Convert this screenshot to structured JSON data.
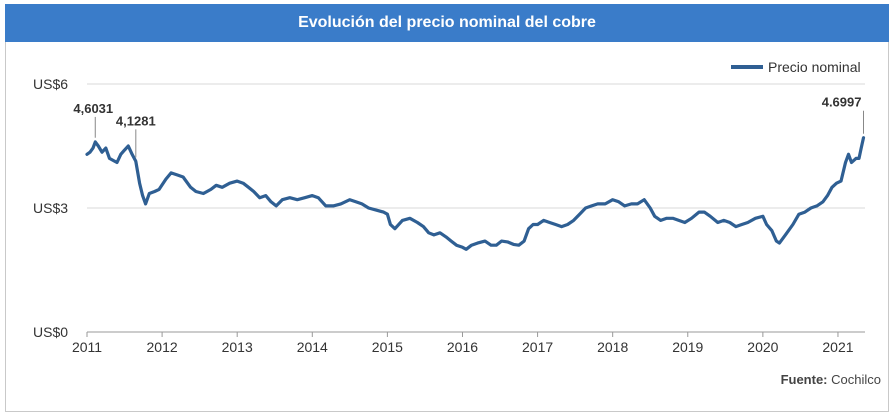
{
  "title": "Evolución del precio nominal del cobre",
  "source": {
    "label": "Fuente:",
    "value": "Cochilco"
  },
  "colors": {
    "title_bg": "#3a7cc9",
    "line": "#2f5f93",
    "grid": "#d9d9d9",
    "axis_text": "#333333"
  },
  "chart_data": {
    "type": "line",
    "title": "Evolución del precio nominal del cobre",
    "xlabel": "",
    "ylabel": "",
    "xlim": [
      2011.0,
      2021.36
    ],
    "ylim": [
      0,
      6
    ],
    "y_ticks": [
      {
        "value": 0,
        "label": "US$0"
      },
      {
        "value": 3,
        "label": "US$3"
      },
      {
        "value": 6,
        "label": "US$6"
      }
    ],
    "x_ticks": [
      "2011",
      "2012",
      "2013",
      "2014",
      "2015",
      "2016",
      "2017",
      "2018",
      "2019",
      "2020",
      "2021"
    ],
    "grid": true,
    "legend_position": "top-right",
    "series": [
      {
        "name": "Precio nominal",
        "color": "#2f5f93",
        "points": [
          [
            2011.0,
            4.3
          ],
          [
            2011.04,
            4.35
          ],
          [
            2011.08,
            4.45
          ],
          [
            2011.11,
            4.6
          ],
          [
            2011.15,
            4.5
          ],
          [
            2011.2,
            4.35
          ],
          [
            2011.25,
            4.45
          ],
          [
            2011.3,
            4.2
          ],
          [
            2011.35,
            4.15
          ],
          [
            2011.4,
            4.1
          ],
          [
            2011.45,
            4.3
          ],
          [
            2011.5,
            4.4
          ],
          [
            2011.55,
            4.5
          ],
          [
            2011.6,
            4.3
          ],
          [
            2011.65,
            4.13
          ],
          [
            2011.7,
            3.6
          ],
          [
            2011.74,
            3.3
          ],
          [
            2011.78,
            3.1
          ],
          [
            2011.83,
            3.35
          ],
          [
            2011.9,
            3.4
          ],
          [
            2011.96,
            3.45
          ],
          [
            2012.05,
            3.7
          ],
          [
            2012.12,
            3.85
          ],
          [
            2012.2,
            3.8
          ],
          [
            2012.28,
            3.75
          ],
          [
            2012.38,
            3.5
          ],
          [
            2012.45,
            3.4
          ],
          [
            2012.55,
            3.35
          ],
          [
            2012.65,
            3.45
          ],
          [
            2012.72,
            3.55
          ],
          [
            2012.8,
            3.5
          ],
          [
            2012.9,
            3.6
          ],
          [
            2013.0,
            3.65
          ],
          [
            2013.08,
            3.6
          ],
          [
            2013.15,
            3.5
          ],
          [
            2013.22,
            3.4
          ],
          [
            2013.3,
            3.25
          ],
          [
            2013.38,
            3.3
          ],
          [
            2013.45,
            3.15
          ],
          [
            2013.52,
            3.05
          ],
          [
            2013.6,
            3.2
          ],
          [
            2013.7,
            3.25
          ],
          [
            2013.8,
            3.2
          ],
          [
            2013.9,
            3.25
          ],
          [
            2014.0,
            3.3
          ],
          [
            2014.08,
            3.25
          ],
          [
            2014.18,
            3.05
          ],
          [
            2014.28,
            3.05
          ],
          [
            2014.38,
            3.1
          ],
          [
            2014.5,
            3.2
          ],
          [
            2014.58,
            3.15
          ],
          [
            2014.66,
            3.1
          ],
          [
            2014.75,
            3.0
          ],
          [
            2014.85,
            2.95
          ],
          [
            2014.95,
            2.9
          ],
          [
            2015.0,
            2.85
          ],
          [
            2015.04,
            2.6
          ],
          [
            2015.1,
            2.5
          ],
          [
            2015.2,
            2.7
          ],
          [
            2015.3,
            2.75
          ],
          [
            2015.4,
            2.65
          ],
          [
            2015.48,
            2.55
          ],
          [
            2015.55,
            2.4
          ],
          [
            2015.62,
            2.35
          ],
          [
            2015.7,
            2.4
          ],
          [
            2015.78,
            2.3
          ],
          [
            2015.85,
            2.2
          ],
          [
            2015.92,
            2.1
          ],
          [
            2016.0,
            2.05
          ],
          [
            2016.05,
            2.0
          ],
          [
            2016.12,
            2.1
          ],
          [
            2016.2,
            2.15
          ],
          [
            2016.3,
            2.2
          ],
          [
            2016.38,
            2.1
          ],
          [
            2016.45,
            2.1
          ],
          [
            2016.52,
            2.2
          ],
          [
            2016.6,
            2.18
          ],
          [
            2016.68,
            2.12
          ],
          [
            2016.75,
            2.1
          ],
          [
            2016.82,
            2.2
          ],
          [
            2016.88,
            2.5
          ],
          [
            2016.94,
            2.6
          ],
          [
            2017.0,
            2.6
          ],
          [
            2017.08,
            2.7
          ],
          [
            2017.16,
            2.65
          ],
          [
            2017.24,
            2.6
          ],
          [
            2017.32,
            2.55
          ],
          [
            2017.4,
            2.6
          ],
          [
            2017.48,
            2.7
          ],
          [
            2017.56,
            2.85
          ],
          [
            2017.64,
            3.0
          ],
          [
            2017.72,
            3.05
          ],
          [
            2017.8,
            3.1
          ],
          [
            2017.9,
            3.1
          ],
          [
            2018.0,
            3.2
          ],
          [
            2018.08,
            3.15
          ],
          [
            2018.16,
            3.05
          ],
          [
            2018.25,
            3.1
          ],
          [
            2018.33,
            3.1
          ],
          [
            2018.42,
            3.2
          ],
          [
            2018.5,
            3.0
          ],
          [
            2018.56,
            2.8
          ],
          [
            2018.64,
            2.7
          ],
          [
            2018.72,
            2.75
          ],
          [
            2018.8,
            2.75
          ],
          [
            2018.88,
            2.7
          ],
          [
            2018.96,
            2.65
          ],
          [
            2019.05,
            2.75
          ],
          [
            2019.15,
            2.9
          ],
          [
            2019.22,
            2.9
          ],
          [
            2019.3,
            2.8
          ],
          [
            2019.4,
            2.65
          ],
          [
            2019.48,
            2.7
          ],
          [
            2019.56,
            2.65
          ],
          [
            2019.64,
            2.55
          ],
          [
            2019.72,
            2.6
          ],
          [
            2019.8,
            2.65
          ],
          [
            2019.9,
            2.75
          ],
          [
            2020.0,
            2.8
          ],
          [
            2020.05,
            2.6
          ],
          [
            2020.12,
            2.45
          ],
          [
            2020.18,
            2.2
          ],
          [
            2020.22,
            2.15
          ],
          [
            2020.3,
            2.35
          ],
          [
            2020.4,
            2.6
          ],
          [
            2020.48,
            2.85
          ],
          [
            2020.56,
            2.9
          ],
          [
            2020.64,
            3.0
          ],
          [
            2020.72,
            3.05
          ],
          [
            2020.8,
            3.15
          ],
          [
            2020.86,
            3.3
          ],
          [
            2020.92,
            3.5
          ],
          [
            2020.98,
            3.6
          ],
          [
            2021.04,
            3.65
          ],
          [
            2021.1,
            4.1
          ],
          [
            2021.14,
            4.3
          ],
          [
            2021.18,
            4.1
          ],
          [
            2021.24,
            4.2
          ],
          [
            2021.28,
            4.2
          ],
          [
            2021.31,
            4.45
          ],
          [
            2021.34,
            4.7
          ]
        ]
      }
    ],
    "annotations": [
      {
        "label": "4,6031",
        "x": 2011.11,
        "y": 4.6031
      },
      {
        "label": "4,1281",
        "x": 2011.65,
        "y": 4.1281
      },
      {
        "label": "4.6997",
        "x": 2021.34,
        "y": 4.6997
      }
    ]
  }
}
